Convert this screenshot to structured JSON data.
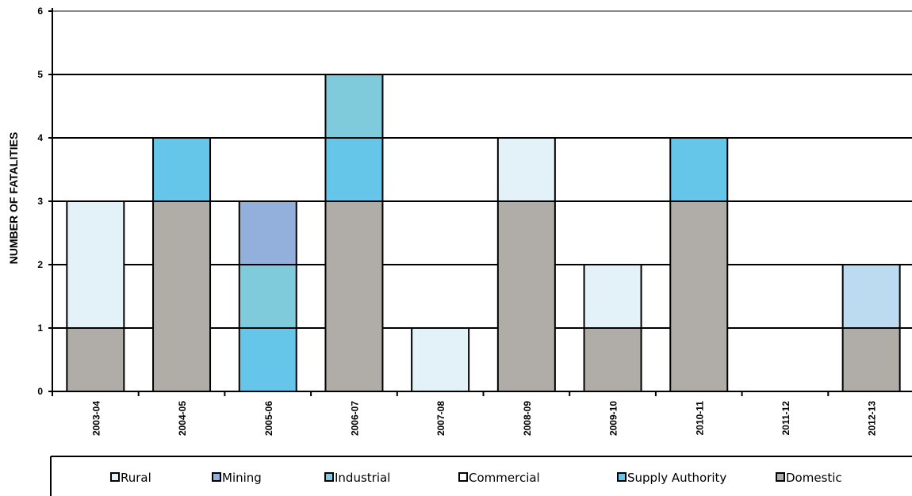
{
  "chart_data": {
    "type": "bar",
    "stacked": true,
    "title": "",
    "xlabel": "",
    "ylabel": "NUMBER OF FATALITIES",
    "ylim": [
      0,
      6
    ],
    "yticks": [
      0,
      1,
      2,
      3,
      4,
      5,
      6
    ],
    "grid": true,
    "legend_position": "bottom",
    "categories": [
      "2003-04",
      "2004-05",
      "2005-06",
      "2006-07",
      "2007-08",
      "2008-09",
      "2009-10",
      "2010-11",
      "2011-12",
      "2012-13"
    ],
    "series": [
      {
        "name": "Domestic",
        "color": "#b0aca7",
        "values": [
          1,
          3,
          0,
          3,
          0,
          3,
          1,
          3,
          0,
          1
        ]
      },
      {
        "name": "Supply Authority",
        "color": "#66c6ea",
        "values": [
          0,
          1,
          1,
          1,
          0,
          0,
          0,
          1,
          0,
          0
        ]
      },
      {
        "name": "Industrial",
        "color": "#80cbdb",
        "values": [
          0,
          0,
          1,
          1,
          0,
          0,
          0,
          0,
          0,
          0
        ]
      },
      {
        "name": "Mining",
        "color": "#93afdb",
        "values": [
          0,
          0,
          1,
          0,
          0,
          0,
          0,
          0,
          0,
          0
        ]
      },
      {
        "name": "Commercial",
        "color": "#ffffff",
        "values": [
          0,
          0,
          0,
          0,
          0,
          0,
          0,
          0,
          0,
          0
        ]
      },
      {
        "name": "Rural",
        "color": "#e2f2f8",
        "values": [
          2,
          0,
          0,
          0,
          1,
          1,
          1,
          0,
          0,
          0
        ]
      },
      {
        "name": "",
        "color": "#bcdbf0",
        "values": [
          0,
          0,
          0,
          0,
          0,
          0,
          0,
          0,
          0,
          1
        ]
      }
    ],
    "legend": [
      {
        "label": "Rural",
        "color": "#e2f2f8"
      },
      {
        "label": "Mining",
        "color": "#93afdb"
      },
      {
        "label": "Industrial",
        "color": "#80cbdb"
      },
      {
        "label": "Commercial",
        "color": "#ffffff"
      },
      {
        "label": "Supply Authority",
        "color": "#66c6ea"
      },
      {
        "label": "Domestic",
        "color": "#b0aca7"
      }
    ]
  }
}
